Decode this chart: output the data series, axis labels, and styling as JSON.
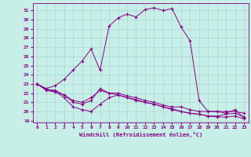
{
  "xlabel": "Windchill (Refroidissement éolien,°C)",
  "bg_color": "#c8eee8",
  "line_color": "#880088",
  "grid_color": "#a8d8d0",
  "xlim": [
    -0.5,
    23.5
  ],
  "ylim": [
    18.8,
    31.8
  ],
  "yticks": [
    19,
    20,
    21,
    22,
    23,
    24,
    25,
    26,
    27,
    28,
    29,
    30,
    31
  ],
  "xticks": [
    0,
    1,
    2,
    3,
    4,
    5,
    6,
    7,
    8,
    9,
    10,
    11,
    12,
    13,
    14,
    15,
    16,
    17,
    18,
    19,
    20,
    21,
    22,
    23
  ],
  "line1_x": [
    0,
    1,
    2,
    3,
    4,
    5,
    6,
    7,
    8,
    9,
    10,
    11,
    12,
    13,
    14,
    15,
    16,
    17,
    18,
    19,
    20,
    21,
    22,
    23
  ],
  "line1_y": [
    23.0,
    22.5,
    22.8,
    23.5,
    24.5,
    25.5,
    26.8,
    24.5,
    29.3,
    30.2,
    30.6,
    30.3,
    31.1,
    31.3,
    31.0,
    31.2,
    29.2,
    27.7,
    21.2,
    20.0,
    20.0,
    19.8,
    20.2,
    19.3
  ],
  "line2_x": [
    0,
    1,
    2,
    3,
    4,
    5,
    6,
    7,
    8,
    9,
    10,
    11,
    12,
    13,
    14,
    15,
    16,
    17,
    18,
    19,
    20,
    21,
    22,
    23
  ],
  "line2_y": [
    23.0,
    22.4,
    22.3,
    21.8,
    21.2,
    21.0,
    21.5,
    22.3,
    22.0,
    21.8,
    21.5,
    21.3,
    21.0,
    20.8,
    20.5,
    20.3,
    20.0,
    19.8,
    19.7,
    19.5,
    19.5,
    19.7,
    19.8,
    19.4
  ],
  "line3_x": [
    0,
    1,
    2,
    3,
    4,
    5,
    6,
    7,
    8,
    9,
    10,
    11,
    12,
    13,
    14,
    15,
    16,
    17,
    18,
    19,
    20,
    21,
    22,
    23
  ],
  "line3_y": [
    23.0,
    22.4,
    22.2,
    21.5,
    20.5,
    20.2,
    20.0,
    20.8,
    21.5,
    21.8,
    21.5,
    21.2,
    21.0,
    20.8,
    20.5,
    20.2,
    20.0,
    19.8,
    19.7,
    19.5,
    19.4,
    19.4,
    19.5,
    19.2
  ],
  "line4_x": [
    0,
    1,
    2,
    3,
    4,
    5,
    6,
    7,
    8,
    9,
    10,
    11,
    12,
    13,
    14,
    15,
    16,
    17,
    18,
    19,
    20,
    21,
    22,
    23
  ],
  "line4_y": [
    23.0,
    22.3,
    22.1,
    21.8,
    21.0,
    20.8,
    21.2,
    22.5,
    22.0,
    22.0,
    21.7,
    21.5,
    21.2,
    21.0,
    20.7,
    20.5,
    20.5,
    20.2,
    20.0,
    20.0,
    20.0,
    20.0,
    20.0,
    19.8
  ]
}
